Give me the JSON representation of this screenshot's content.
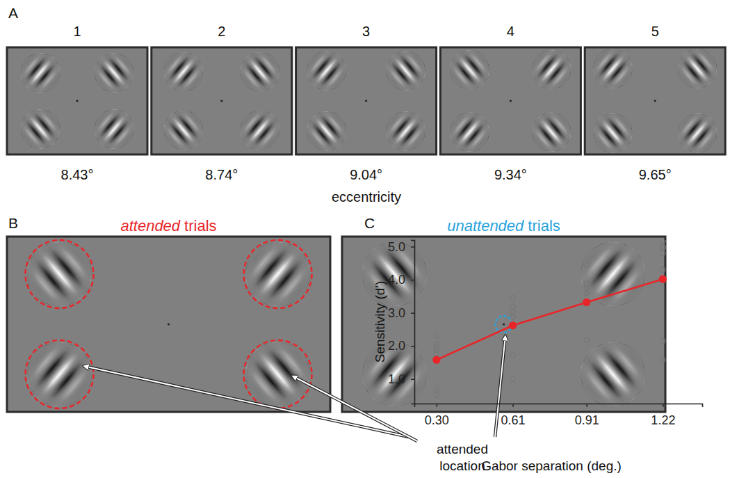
{
  "panel_labels": [
    "A",
    "B",
    "C"
  ],
  "panel_a": {
    "frames": [
      1,
      2,
      3,
      4,
      5
    ],
    "eccentricities": [
      {
        "value": 8.43,
        "label": "8.43°"
      },
      {
        "value": 8.74,
        "label": "8.74°"
      },
      {
        "value": 9.04,
        "label": "9.04°"
      },
      {
        "value": 9.34,
        "label": "9.34°"
      },
      {
        "value": 9.65,
        "label": "9.65°"
      }
    ],
    "caption": "eccentricity"
  },
  "panel_b": {
    "titles": [
      {
        "emphasis": "attended",
        "text": "trials",
        "color": "#e8262a"
      },
      {
        "emphasis": "unattended",
        "text": "trials",
        "color": "#29a3dc"
      }
    ],
    "callout": [
      "attended",
      "location"
    ]
  },
  "chart_data": {
    "type": "scatter",
    "xlabel": "Gabor separation (deg.)",
    "ylabel": "Sensitivity (d')",
    "xlim": [
      0.21,
      1.38
    ],
    "ylim": [
      0.26,
      5.2
    ],
    "xticks": [
      {
        "value": 0.3,
        "label": "0.30"
      },
      0.61,
      0.91,
      1.22
    ],
    "yticks": [
      {
        "value": 1,
        "label": "1.0"
      },
      {
        "value": 2,
        "label": "2.0"
      },
      {
        "value": 3,
        "label": "3.0"
      },
      {
        "value": 4,
        "label": "4.0"
      },
      {
        "value": 5,
        "label": "5.0"
      }
    ],
    "grid": false,
    "series": [
      {
        "type": "scatter",
        "color": "#777777",
        "marker": "open-circle",
        "x": [
          0.3,
          0.3,
          0.3,
          0.3,
          0.3,
          0.3,
          0.3,
          0.3,
          0.61,
          0.61,
          0.61,
          0.61,
          0.61,
          0.61,
          0.61,
          0.61,
          0.91,
          0.91,
          0.91,
          0.91,
          0.91,
          0.91,
          0.91,
          0.91,
          1.22,
          1.22,
          1.22,
          1.22,
          1.22,
          1.22,
          1.22,
          1.22
        ],
        "values": [
          2.3,
          2.05,
          1.98,
          1.88,
          1.78,
          1.6,
          0.68,
          0.52,
          3.45,
          3.2,
          3.05,
          2.88,
          2.62,
          2.6,
          1.72,
          1.0,
          4.45,
          3.9,
          3.85,
          3.75,
          3.6,
          3.3,
          2.18,
          1.55,
          5.17,
          5.0,
          4.95,
          4.8,
          4.3,
          4.0,
          2.15,
          1.58
        ]
      },
      {
        "type": "line",
        "color": "#e8262a",
        "marker": "circle",
        "x": [
          0.3,
          0.61,
          0.91,
          1.22
        ],
        "values": [
          1.58,
          2.62,
          3.32,
          4.02
        ]
      }
    ]
  }
}
